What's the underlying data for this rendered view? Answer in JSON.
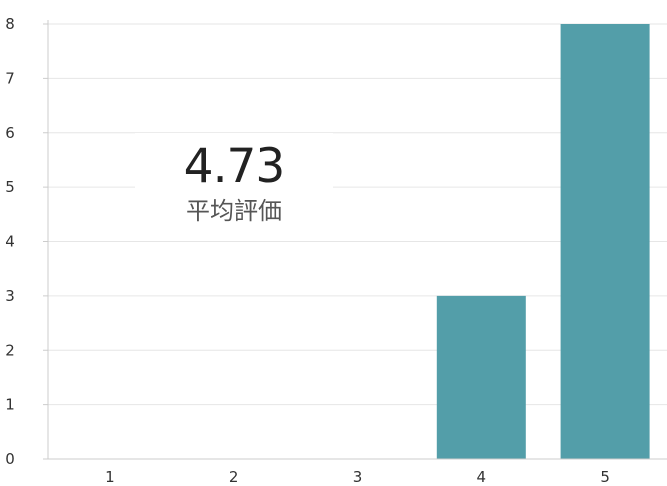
{
  "chart_data": {
    "type": "bar",
    "categories": [
      "1",
      "2",
      "3",
      "4",
      "5"
    ],
    "values": [
      0,
      0,
      0,
      3,
      8
    ],
    "ylim": [
      0,
      8
    ],
    "yticks": [
      0,
      1,
      2,
      3,
      4,
      5,
      6,
      7,
      8
    ],
    "grid": true,
    "bar_color": "#539ea9"
  },
  "summary": {
    "average": "4.73",
    "label": "平均評価"
  }
}
